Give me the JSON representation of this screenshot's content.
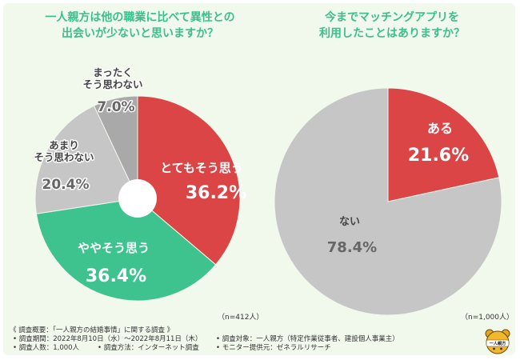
{
  "colors": {
    "title": "#3bbf8b",
    "red": "#db4545",
    "green": "#3ec28e",
    "lightgray": "#c6c6c6",
    "darkgray": "#a9a9a9",
    "background": "#f1f8ec"
  },
  "left_title": "一人親方は他の職業に比べて異性との\n出会いが少ないと思いますか？",
  "right_title": "今までマッチングアプリを\n利用したことはありますか？",
  "left_n": "（n=412人）",
  "right_n": "（n=1,000人）",
  "chart_data": [
    {
      "type": "pie",
      "donut": true,
      "start": "12 o'clock, clockwise",
      "slices": [
        {
          "label": "とてもそう思う",
          "value": 36.2,
          "value_label": "36.2%",
          "color": "#db4545"
        },
        {
          "label": "ややそう思う",
          "value": 36.4,
          "value_label": "36.4%",
          "color": "#3ec28e"
        },
        {
          "label": "あまり\nそう思わない",
          "value": 20.4,
          "value_label": "20.4%",
          "color": "#c6c6c6"
        },
        {
          "label": "まったく\nそう思わない",
          "value": 7.0,
          "value_label": "7.0%",
          "color": "#a9a9a9"
        }
      ]
    },
    {
      "type": "pie",
      "donut": false,
      "start": "12 o'clock, clockwise",
      "slices": [
        {
          "label": "ある",
          "value": 21.6,
          "value_label": "21.6%",
          "color": "#db4545"
        },
        {
          "label": "ない",
          "value": 78.4,
          "value_label": "78.4%",
          "color": "#c6c6c6"
        }
      ]
    }
  ],
  "footer": {
    "heading": "《 調査概要：「一人親方の結婚事情」に関する調査 》",
    "items": [
      "• 調査期間：2022年8月10日（水）〜2022年8月11日（木）",
      "• 調査対象：一人親方（特定作業従事者、建設個人事業主）",
      "• 調査人数：1,000人",
      "• 調査方法：インターネット調査",
      "• モニター提供元：ゼネラルリサーチ"
    ]
  },
  "mascot_icon": "bear-mascot-icon",
  "mascot_text": "一人親方"
}
